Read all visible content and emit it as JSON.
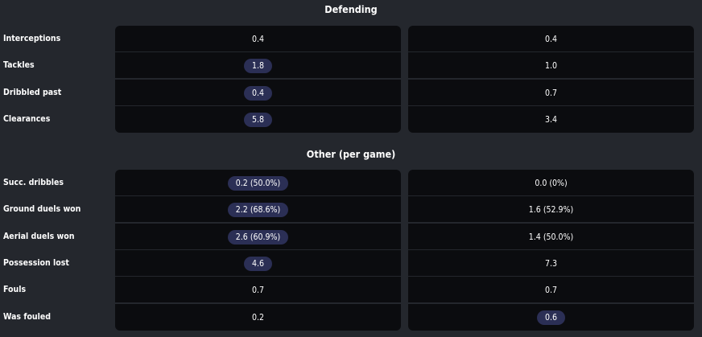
{
  "defending": {
    "title": "Defending",
    "rows": [
      {
        "label": "Interceptions",
        "left": "0.4",
        "right": "0.4",
        "highlight": "none"
      },
      {
        "label": "Tackles",
        "left": "1.8",
        "right": "1.0",
        "highlight": "left"
      },
      {
        "label": "Dribbled past",
        "left": "0.4",
        "right": "0.7",
        "highlight": "left"
      },
      {
        "label": "Clearances",
        "left": "5.8",
        "right": "3.4",
        "highlight": "left"
      }
    ]
  },
  "other": {
    "title": "Other (per game)",
    "rows": [
      {
        "label": "Succ. dribbles",
        "left": "0.2 (50.0%)",
        "right": "0.0 (0%)",
        "highlight": "left"
      },
      {
        "label": "Ground duels won",
        "left": "2.2 (68.6%)",
        "right": "1.6 (52.9%)",
        "highlight": "left"
      },
      {
        "label": "Aerial duels won",
        "left": "2.6 (60.9%)",
        "right": "1.4 (50.0%)",
        "highlight": "left"
      },
      {
        "label": "Possession lost",
        "left": "4.6",
        "right": "7.3",
        "highlight": "left"
      },
      {
        "label": "Fouls",
        "left": "0.7",
        "right": "0.7",
        "highlight": "none"
      },
      {
        "label": "Was fouled",
        "left": "0.2",
        "right": "0.6",
        "highlight": "right"
      }
    ]
  },
  "colors": {
    "page_bg": "#24272d",
    "cell_bg": "#0b0c0f",
    "highlight_bg": "#2b2f55",
    "text": "#ffffff"
  }
}
